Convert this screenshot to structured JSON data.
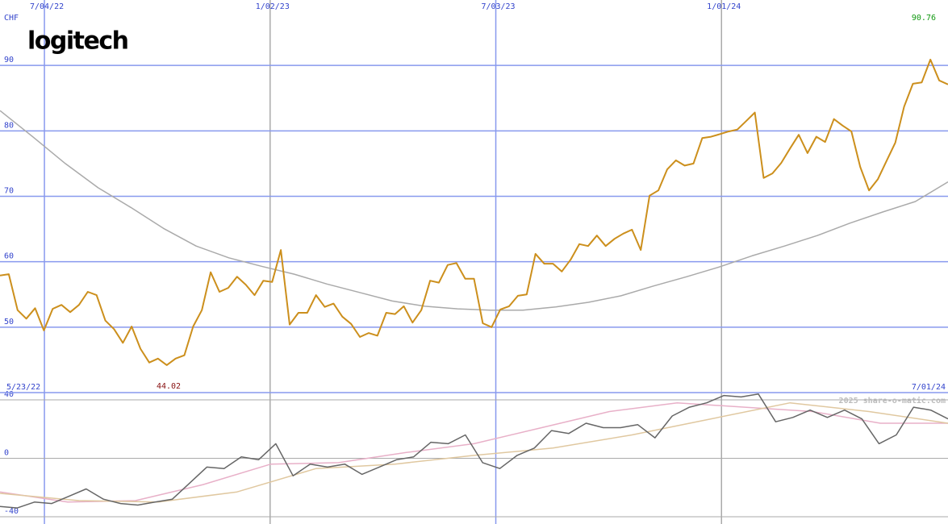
{
  "logo": "logitech",
  "watermark": "2025 share-o-matic.com",
  "chart_data": [
    {
      "type": "line",
      "annotations": [
        {
          "text": "CHF"
        },
        {
          "text": "90.76",
          "color": "#119911"
        },
        {
          "text": "44.02",
          "color": "#881111"
        }
      ],
      "ylim": [
        40,
        100
      ],
      "yticks": [
        50,
        60,
        70,
        80,
        90
      ],
      "grid": true,
      "xticks": [
        "7/04/22",
        "1/02/23",
        "7/03/23",
        "1/01/24"
      ],
      "xtick_colors": [
        "#8899ee",
        "#aaaaaa",
        "#8899ee",
        "#aaaaaa"
      ],
      "series": [
        {
          "color": "#aaaaaa",
          "values": [
            83.1,
            79.1,
            75.0,
            71.3,
            68.3,
            65.1,
            62.4,
            60.6,
            59.3,
            58.1,
            56.6,
            55.3,
            54.0,
            53.2,
            52.8,
            52.6,
            52.6,
            53.1,
            53.8,
            54.8,
            56.3,
            57.7,
            59.2,
            60.9,
            62.4,
            64.0,
            65.9,
            67.6,
            69.2,
            72.2
          ]
        },
        {
          "color": "#cc8f1c",
          "values": [
            57.9,
            58.1,
            52.6,
            51.3,
            52.9,
            49.5,
            52.8,
            53.4,
            52.3,
            53.4,
            55.4,
            54.9,
            51.0,
            49.7,
            47.6,
            50.1,
            46.7,
            44.6,
            45.2,
            44.2,
            45.2,
            45.7,
            50.1,
            52.6,
            58.4,
            55.4,
            56.0,
            57.7,
            56.5,
            54.9,
            57.1,
            56.9,
            61.8,
            50.4,
            52.2,
            52.2,
            54.9,
            53.1,
            53.6,
            51.6,
            50.5,
            48.5,
            49.1,
            48.7,
            52.2,
            52.0,
            53.2,
            50.7,
            52.6,
            57.1,
            56.8,
            59.5,
            59.8,
            57.4,
            57.4,
            50.6,
            50.0,
            52.7,
            53.2,
            54.8,
            55.0,
            61.2,
            59.7,
            59.7,
            58.5,
            60.3,
            62.7,
            62.4,
            64.0,
            62.4,
            63.5,
            64.3,
            64.9,
            61.8,
            70.1,
            70.9,
            74.1,
            75.5,
            74.7,
            75.0,
            78.9,
            79.1,
            79.5,
            79.9,
            80.2,
            81.5,
            82.8,
            72.8,
            73.5,
            75.1,
            77.3,
            79.4,
            76.6,
            79.1,
            78.3,
            81.8,
            80.8,
            79.9,
            74.5,
            70.9,
            72.6,
            75.4,
            78.2,
            83.7,
            87.2,
            87.4,
            90.9,
            87.7,
            87.1
          ]
        }
      ]
    },
    {
      "type": "line",
      "xlim": [
        "5/23/22",
        "7/01/24"
      ],
      "ylim": [
        -45,
        45
      ],
      "yticks": [
        40,
        0,
        -40
      ],
      "series": [
        {
          "color": "#e8b0c8",
          "values": [
            -23,
            -30,
            -29,
            -18,
            -4,
            -3,
            4,
            10,
            21,
            32,
            38,
            35,
            32,
            24,
            24
          ]
        },
        {
          "color": "#e0c8a0",
          "values": [
            -24,
            -29,
            -30,
            -23,
            -7,
            -4,
            2,
            7,
            16,
            27,
            38,
            32,
            24
          ]
        },
        {
          "color": "#666666",
          "values": [
            -33,
            -34,
            -30,
            -31,
            -26,
            -21,
            -28,
            -31,
            -32,
            -30,
            -28,
            -17,
            -6,
            -7,
            1,
            -1,
            10,
            -12,
            -4,
            -6,
            -4,
            -11,
            -6,
            -1,
            1,
            11,
            10,
            16,
            -3,
            -7,
            2,
            7,
            19,
            17,
            24,
            21,
            21,
            23,
            14,
            29,
            35,
            38,
            43,
            42,
            44,
            25,
            28,
            33,
            28,
            33,
            27,
            10,
            16,
            35,
            33,
            27
          ]
        }
      ]
    }
  ]
}
